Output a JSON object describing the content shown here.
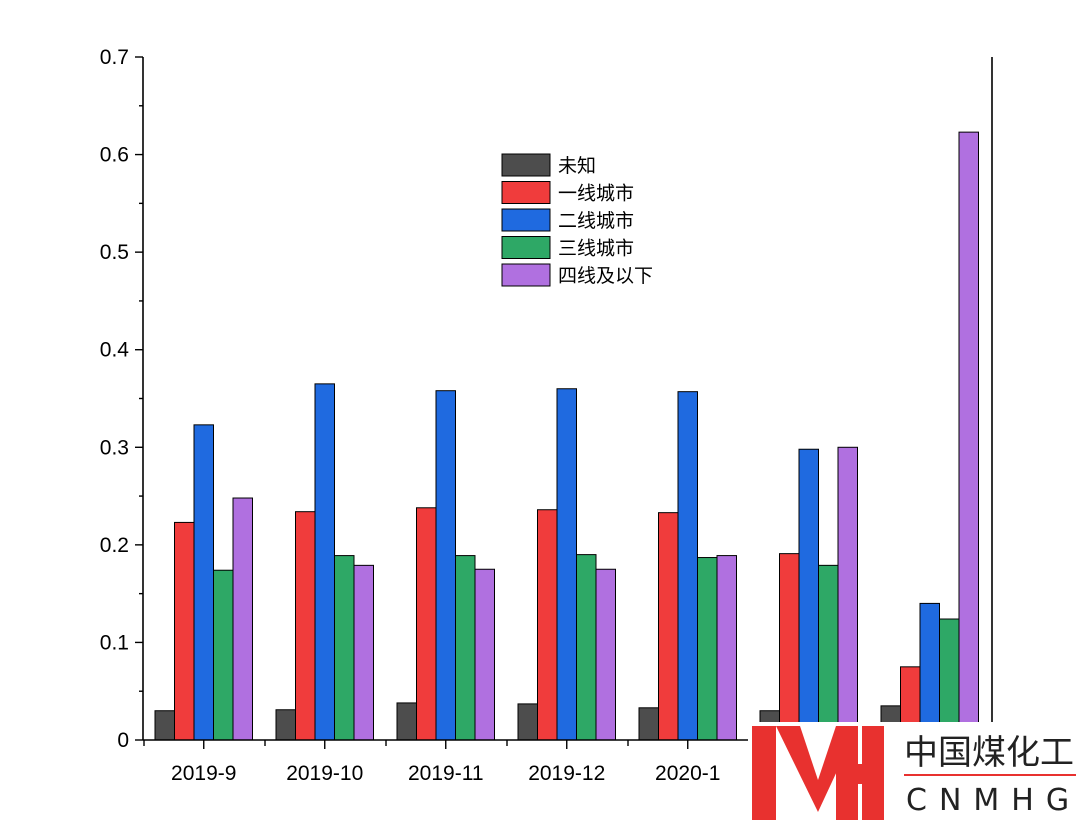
{
  "chart_data": {
    "type": "bar",
    "categories": [
      "2019-9",
      "2019-10",
      "2019-11",
      "2019-12",
      "2020-1",
      "",
      ""
    ],
    "series": [
      {
        "name": "未知",
        "color": "#4d4d4d",
        "values": [
          0.03,
          0.031,
          0.038,
          0.037,
          0.033,
          0.03,
          0.035
        ]
      },
      {
        "name": "一线城市",
        "color": "#f03c3c",
        "values": [
          0.223,
          0.234,
          0.238,
          0.236,
          0.233,
          0.191,
          0.075
        ]
      },
      {
        "name": "二线城市",
        "color": "#1f6ae0",
        "values": [
          0.323,
          0.365,
          0.358,
          0.36,
          0.357,
          0.298,
          0.14
        ]
      },
      {
        "name": "三线城市",
        "color": "#2ea866",
        "values": [
          0.174,
          0.189,
          0.189,
          0.19,
          0.187,
          0.179,
          0.124
        ]
      },
      {
        "name": "四线及以下",
        "color": "#b070e0",
        "values": [
          0.248,
          0.179,
          0.175,
          0.175,
          0.189,
          0.3,
          0.623
        ]
      }
    ],
    "ylim": [
      0,
      0.7
    ],
    "yticks": [
      "0",
      "0.1",
      "0.2",
      "0.3",
      "0.4",
      "0.5",
      "0.6",
      "0.7"
    ],
    "legend_position": "upper-center",
    "grid": false
  },
  "watermark": {
    "logo_letters": "MH",
    "name_cn": "中国煤化工",
    "name_en": "CNMHG",
    "color": "#e8312f"
  }
}
